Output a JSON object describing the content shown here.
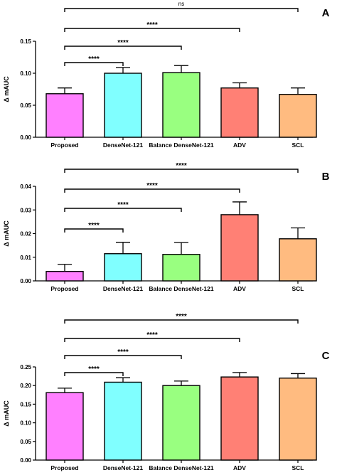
{
  "chart_data": [
    {
      "type": "bar",
      "panel": "A",
      "ylabel": "Δ mAUC",
      "categories": [
        "Proposed",
        "DenseNet-121",
        "Balance DenseNet-121",
        "ADV",
        "SCL"
      ],
      "values": [
        0.068,
        0.1,
        0.101,
        0.077,
        0.067
      ],
      "errors": [
        0.009,
        0.009,
        0.011,
        0.008,
        0.01
      ],
      "ylim": [
        0,
        0.15
      ],
      "yticks": [
        "0.00",
        "0.05",
        "0.10",
        "0.15"
      ],
      "grid": false,
      "significance": [
        {
          "from": "Proposed",
          "to": "DenseNet-121",
          "label": "****"
        },
        {
          "from": "Proposed",
          "to": "Balance DenseNet-121",
          "label": "****"
        },
        {
          "from": "Proposed",
          "to": "ADV",
          "label": "****"
        },
        {
          "from": "Proposed",
          "to": "SCL",
          "label": "ns"
        }
      ]
    },
    {
      "type": "bar",
      "panel": "B",
      "ylabel": "Δ mAUC",
      "categories": [
        "Proposed",
        "DenseNet-121",
        "Balance DenseNet-121",
        "ADV",
        "SCL"
      ],
      "values": [
        0.004,
        0.0115,
        0.0112,
        0.028,
        0.0178
      ],
      "errors": [
        0.003,
        0.0048,
        0.005,
        0.0054,
        0.0046
      ],
      "ylim": [
        0,
        0.04
      ],
      "yticks": [
        "0.00",
        "0.01",
        "0.02",
        "0.03",
        "0.04"
      ],
      "grid": false,
      "significance": [
        {
          "from": "Proposed",
          "to": "DenseNet-121",
          "label": "****"
        },
        {
          "from": "Proposed",
          "to": "Balance DenseNet-121",
          "label": "****"
        },
        {
          "from": "Proposed",
          "to": "ADV",
          "label": "****"
        },
        {
          "from": "Proposed",
          "to": "SCL",
          "label": "****"
        }
      ]
    },
    {
      "type": "bar",
      "panel": "C",
      "ylabel": "Δ mAUC",
      "categories": [
        "Proposed",
        "DenseNet-121",
        "Balance DenseNet-121",
        "ADV",
        "SCL"
      ],
      "values": [
        0.181,
        0.209,
        0.2,
        0.223,
        0.22
      ],
      "errors": [
        0.012,
        0.012,
        0.012,
        0.012,
        0.012
      ],
      "ylim": [
        0,
        0.25
      ],
      "yticks": [
        "0.00",
        "0.05",
        "0.10",
        "0.15",
        "0.20",
        "0.25"
      ],
      "grid": false,
      "significance": [
        {
          "from": "Proposed",
          "to": "DenseNet-121",
          "label": "****"
        },
        {
          "from": "Proposed",
          "to": "Balance DenseNet-121",
          "label": "****"
        },
        {
          "from": "Proposed",
          "to": "ADV",
          "label": "****"
        },
        {
          "from": "Proposed",
          "to": "SCL",
          "label": "****"
        }
      ]
    }
  ],
  "colors": {
    "Proposed": "#ff80ff",
    "DenseNet-121": "#80ffff",
    "Balance DenseNet-121": "#99ff80",
    "ADV": "#ff8075",
    "SCL": "#ffbb80"
  }
}
